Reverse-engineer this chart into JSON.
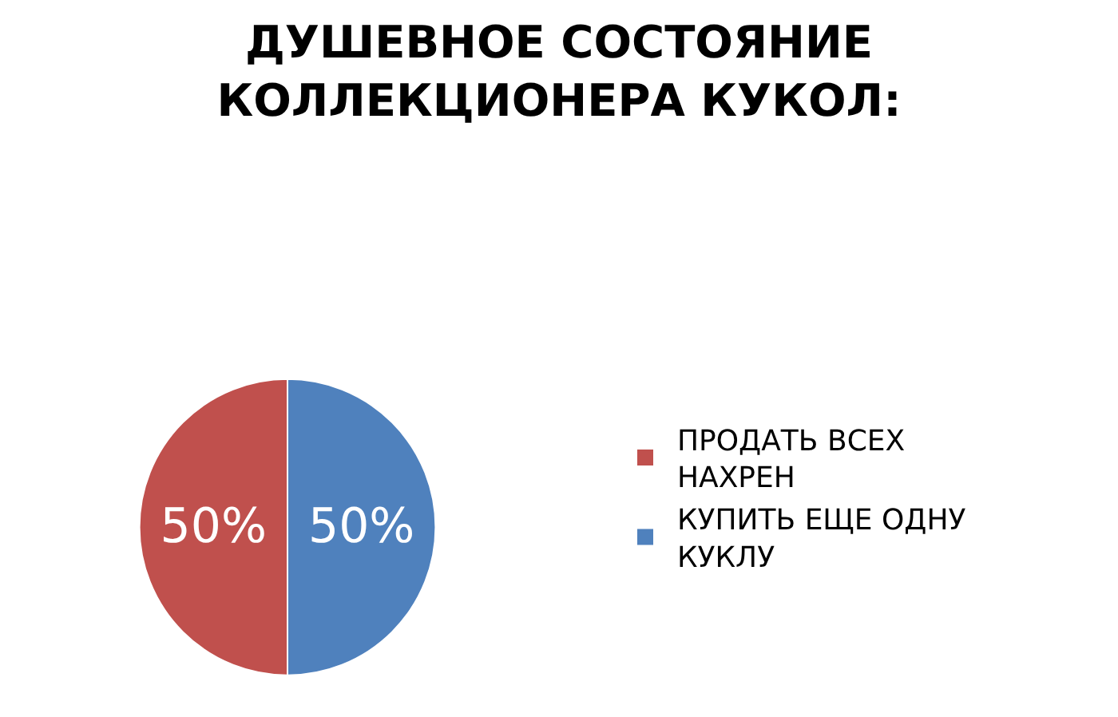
{
  "chart_data": {
    "type": "pie",
    "title": "ДУШЕВНОЕ СОСТОЯНИЕ КОЛЛЕКЦИОНЕРА КУКОЛ:",
    "categories": [
      "ПРОДАТЬ ВСЕХ НАХРЕН",
      "КУПИТЬ ЕЩЕ ОДНУ КУКЛУ"
    ],
    "values": [
      50,
      50
    ],
    "value_labels": [
      "50%",
      "50%"
    ],
    "colors": [
      "#c0504d",
      "#4f81bd"
    ],
    "legend": "right"
  }
}
